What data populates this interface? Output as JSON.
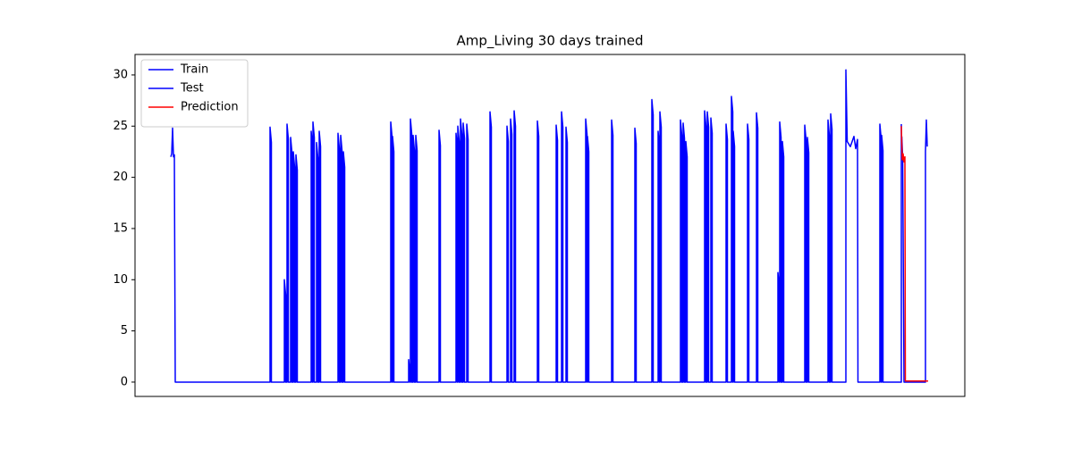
{
  "chart_data": {
    "type": "line",
    "title": "Amp_Living 30 days trained",
    "xlim": [
      0,
      928
    ],
    "ylim": [
      -1.4,
      32
    ],
    "yticks": [
      0,
      5,
      10,
      15,
      20,
      25,
      30
    ],
    "grid": false,
    "legend": "upper left",
    "series": [
      {
        "name": "Train",
        "color": "#0000ff",
        "x": [
          40,
          41,
          42,
          43,
          44,
          45,
          151,
          151,
          152.5,
          152.5,
          167,
          167,
          168.5,
          168.5,
          170,
          170,
          171.5,
          171.5,
          174,
          174,
          175.5,
          175.5,
          177,
          177,
          178.5,
          178.5,
          180,
          180,
          181.5,
          181.5,
          197,
          197,
          198.5,
          198.5,
          199,
          199,
          200.5,
          200.5,
          203,
          203,
          204.5,
          204.5,
          206,
          206,
          207.5,
          207.5,
          227,
          227,
          228.5,
          228.5,
          230,
          230,
          231.5,
          231.5,
          233,
          233,
          234.5,
          234.5,
          286,
          286,
          287.5,
          287.5,
          288,
          288,
          289.5,
          289.5,
          306,
          306,
          307.5,
          307.5,
          308,
          308,
          309.5,
          309.5,
          311,
          311,
          312.5,
          312.5,
          314,
          314,
          315.5,
          315.5,
          340,
          340,
          341.5,
          341.5,
          359,
          359,
          360.5,
          360.5,
          361,
          361,
          362.5,
          362.5,
          364,
          364,
          365.5,
          365.5,
          367,
          367,
          368.5,
          368.5,
          371,
          371,
          372.5,
          372.5,
          397,
          397,
          398.5,
          398.5,
          416,
          416,
          417.5,
          417.5,
          420,
          420,
          421.5,
          421.5,
          424,
          424,
          425.5,
          425.5,
          450,
          450,
          451.5,
          451.5,
          471,
          471,
          472.5,
          472.5,
          477,
          477,
          478.5,
          478.5,
          482,
          482,
          483.5,
          483.5,
          504,
          504,
          505.5,
          505.5,
          506,
          506,
          507.5,
          507.5,
          533,
          533,
          534.5,
          534.5,
          559,
          559,
          560.5,
          560.5,
          578,
          578,
          579.5,
          579.5,
          585,
          585,
          586.5,
          586.5,
          587,
          587,
          588.5,
          588.5,
          610,
          610,
          611.5,
          611.5,
          613,
          613,
          614.5,
          614.5,
          616,
          616,
          617.5,
          617.5,
          637,
          637,
          638.5,
          638.5,
          640,
          640,
          641.5,
          641.5,
          644,
          644,
          645.5,
          645.5,
          661,
          661,
          662.5,
          662.5,
          667,
          667,
          668.5,
          668.5,
          669,
          669,
          670.5,
          670.5,
          685,
          685,
          686.5,
          686.5,
          695,
          695,
          696.5,
          696.5,
          719,
          719,
          720.5,
          720.5,
          721,
          721,
          722.5,
          722.5,
          724,
          724,
          725.5,
          725.5,
          749,
          749,
          750.5,
          750.5,
          752,
          752,
          753.5,
          753.5,
          775,
          775,
          776.5,
          776.5,
          778,
          778,
          779.5,
          779.5,
          795,
          795,
          796.5,
          800,
          804,
          806,
          808,
          808.5,
          833,
          833,
          834.5,
          834.5,
          835,
          835,
          836.5,
          836.5,
          857,
          857
        ],
        "values": [
          22,
          22.3,
          24.8,
          22,
          22.2,
          0,
          0,
          24.9,
          23.4,
          0,
          0,
          10,
          8.5,
          0,
          0,
          25.2,
          23.7,
          0,
          0,
          23.9,
          22.4,
          0,
          0,
          22.5,
          21,
          0,
          0,
          22.2,
          20.7,
          0,
          0,
          24.5,
          23,
          0,
          0,
          25.4,
          23.9,
          0,
          0,
          23.4,
          21.9,
          0,
          0,
          24.5,
          23,
          0,
          0,
          24.3,
          22.8,
          0,
          0,
          24.1,
          22.6,
          0,
          0,
          22.5,
          21,
          0,
          0,
          25.4,
          23.9,
          0,
          0,
          24,
          22.5,
          0,
          0,
          2.2,
          0.7,
          0,
          0,
          25.7,
          24.2,
          0,
          0,
          24.1,
          22.6,
          0,
          0,
          24.1,
          22.6,
          0,
          0,
          24.6,
          23.1,
          0,
          0,
          24.3,
          22.8,
          0,
          0,
          25,
          23.5,
          0,
          0,
          25.7,
          24.2,
          0,
          0,
          25.3,
          23.8,
          0,
          0,
          25.2,
          23.7,
          0,
          0,
          26.4,
          24.9,
          0,
          0,
          25,
          23.5,
          0,
          0,
          25.7,
          24.2,
          0,
          0,
          26.5,
          25,
          0,
          0,
          25.5,
          24,
          0,
          0,
          25.1,
          23.6,
          0,
          0,
          26.4,
          24.9,
          0,
          0,
          24.9,
          23.4,
          0,
          0,
          25.7,
          24.2,
          0,
          0,
          24,
          22.5,
          0,
          0,
          25.6,
          24.1,
          0,
          0,
          24.8,
          23.3,
          0,
          0,
          27.6,
          26.1,
          0,
          0,
          24.5,
          23,
          0,
          0,
          26.4,
          24.9,
          0,
          0,
          25.6,
          24.1,
          0,
          0,
          25.3,
          23.8,
          0,
          0,
          23.5,
          22,
          0,
          0,
          26.5,
          25,
          0,
          0,
          26.4,
          24.9,
          0,
          0,
          25.8,
          24.3,
          0,
          0,
          25.2,
          23.7,
          0,
          0,
          27.9,
          26.4,
          0,
          0,
          24.5,
          23,
          0,
          0,
          25.2,
          23.7,
          0,
          0,
          26.3,
          24.8,
          0,
          0,
          10.7,
          9.2,
          0,
          0,
          25.4,
          23.9,
          0,
          0,
          23.5,
          22,
          0,
          0,
          25.1,
          23.6,
          0,
          0,
          23.9,
          22.4,
          0,
          0,
          25.6,
          24.1,
          0,
          0,
          26.2,
          24.7,
          0,
          0,
          30.5,
          23.5,
          23,
          24,
          22.8,
          23.7,
          0,
          0,
          25.2,
          23.7,
          0,
          0,
          24.1,
          22.6,
          0,
          0,
          25.2
        ]
      },
      {
        "name": "Test",
        "color": "#0000ff",
        "x": [
          857.5,
          858.5,
          860,
          884,
          884,
          885,
          886
        ],
        "values": [
          24,
          22,
          0,
          0,
          22.5,
          25.6,
          23
        ]
      },
      {
        "name": "Prediction",
        "color": "#ff0000",
        "x": [
          857,
          858,
          859,
          860,
          861,
          861.5,
          887
        ],
        "values": [
          25,
          21.7,
          22.3,
          21.5,
          22,
          0.1,
          0.1
        ]
      }
    ]
  }
}
